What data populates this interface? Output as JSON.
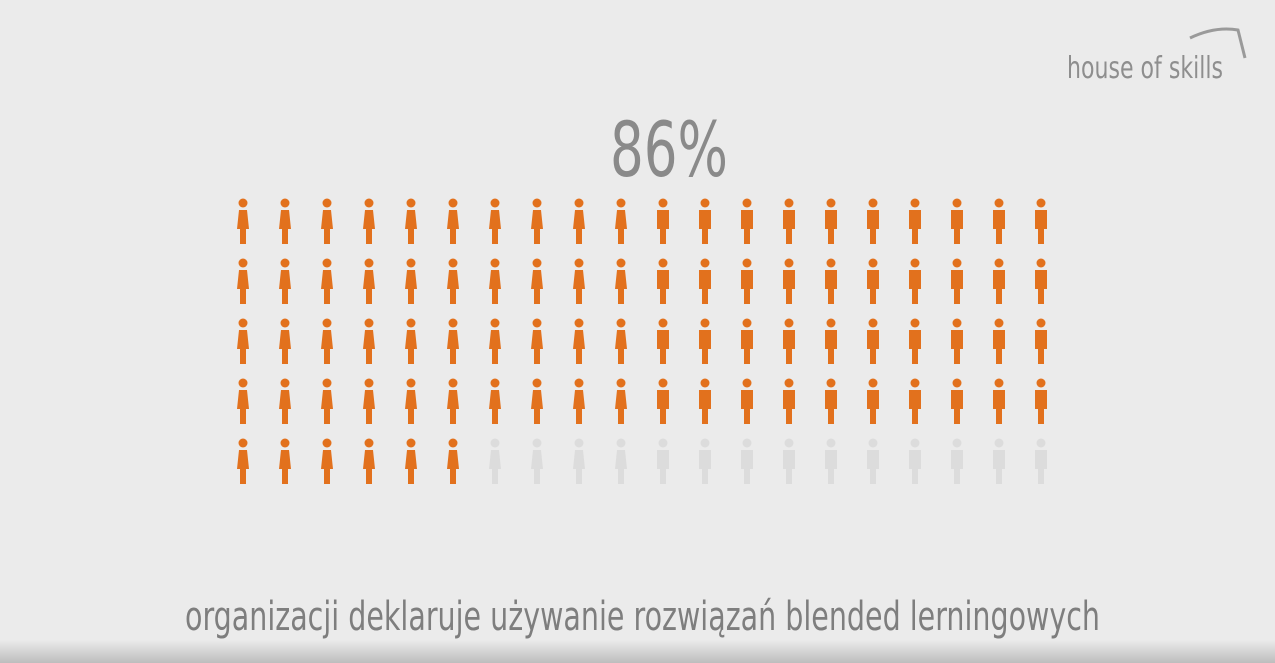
{
  "logo": "house of skills",
  "chart_data": {
    "type": "pictogram",
    "values": [
      86
    ],
    "value_labels": [
      "86%"
    ],
    "total": 100,
    "columns": 20,
    "caption": "organizacji deklaruje używanie rozwiązań blended lerningowych",
    "color": "#e2711d",
    "empty_color": "#d9d9d9"
  }
}
